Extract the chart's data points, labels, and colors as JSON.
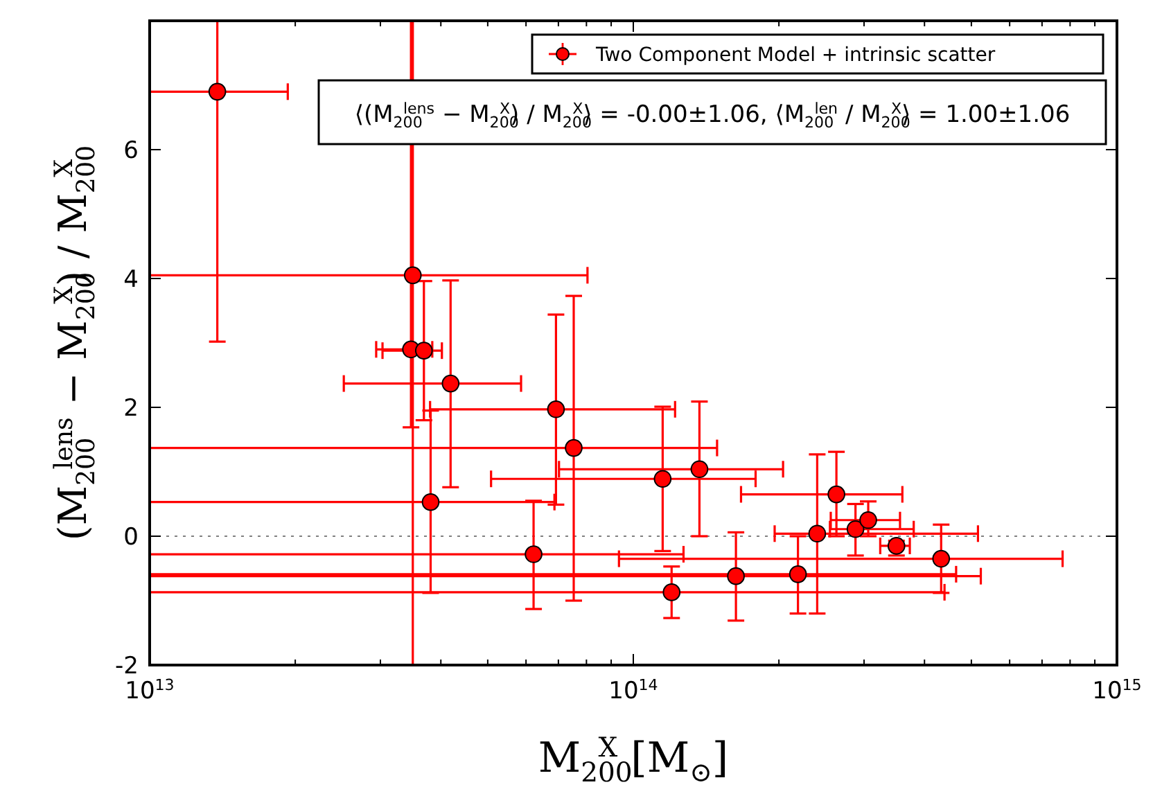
{
  "chart_data": {
    "type": "scatter",
    "xlabel": "M$_{200}$$^{X}$ [M$_{⊙}$]",
    "ylabel": "(M$_{200}$$^{lens}$ − M$_{200}$$^{X}$) / M$_{200}$$^{X}$",
    "log": "x",
    "xlim": [
      10000000000000.0,
      1000000000000000.0
    ],
    "ylim": [
      -2,
      8
    ],
    "xticks": [
      {
        "value": 10000000000000.0,
        "label": "10$^{13}$"
      },
      {
        "value": 20000000000000.0,
        "label": null
      },
      {
        "value": 30000000000000.0,
        "label": null
      },
      {
        "value": 40000000000000.0,
        "label": null
      },
      {
        "value": 50000000000000.0,
        "label": null
      },
      {
        "value": 60000000000000.0,
        "label": null
      },
      {
        "value": 70000000000000.0,
        "label": null
      },
      {
        "value": 80000000000000.0,
        "label": null
      },
      {
        "value": 90000000000000.0,
        "label": null
      },
      {
        "value": 100000000000000.0,
        "label": "10$^{14}$"
      },
      {
        "value": 200000000000000.0,
        "label": null
      },
      {
        "value": 300000000000000.0,
        "label": null
      },
      {
        "value": 400000000000000.0,
        "label": null
      },
      {
        "value": 500000000000000.0,
        "label": null
      },
      {
        "value": 600000000000000.0,
        "label": null
      },
      {
        "value": 700000000000000.0,
        "label": null
      },
      {
        "value": 800000000000000.0,
        "label": null
      },
      {
        "value": 900000000000000.0,
        "label": null
      },
      {
        "value": 1000000000000000.0,
        "label": "10$^{15}$"
      }
    ],
    "yticks": [
      -2,
      0,
      2,
      4,
      6
    ],
    "grid": false,
    "legend": "top right",
    "marker": "circle",
    "ref_lines": [
      {
        "axis": "y",
        "value": 0,
        "color": "#808080",
        "line_style": "dotted"
      }
    ],
    "annotations": [
      "⟨(M$_{200}$$^{lens}$ − M$_{200}$$^{X}$) / M$_{200}$$^{X}$⟩ = -0.00±1.06, ⟨M$_{200}$$^{len}$ / M$_{200}$$^{X}$⟩ = 1.00±1.06"
    ],
    "series": [
      {
        "name": "Two Component Model + intrinsic scatter",
        "color": "#ff0000",
        "x": [
          13800000000000.0,
          35000000000000.0,
          34700000000000.0,
          36900000000000.0,
          41900000000000.0,
          69200000000000.0,
          75300000000000.0,
          38100000000000.0,
          62200000000000.0,
          115000000000000.0,
          137000000000000.0,
          263000000000000.0,
          240000000000000.0,
          288000000000000.0,
          306000000000000.0,
          350000000000000.0,
          433000000000000.0,
          163000000000000.0,
          219000000000000.0,
          120000000000000.0
        ],
        "values": [
          6.9,
          4.05,
          2.9,
          2.88,
          2.37,
          1.97,
          1.37,
          0.53,
          -0.28,
          0.89,
          1.04,
          0.65,
          0.04,
          0.11,
          0.25,
          -0.15,
          -0.35,
          -0.62,
          -0.59,
          -0.87
        ],
        "errors": [
          [
            3.02,
            8
          ],
          [
            -2,
            8
          ],
          [
            1.69,
            8
          ],
          [
            1.8,
            3.96
          ],
          [
            0.76,
            3.97
          ],
          [
            0.49,
            3.44
          ],
          [
            -1.0,
            3.73
          ],
          [
            -0.88,
            1.95
          ],
          [
            -1.13,
            0.55
          ],
          [
            -0.23,
            2.01
          ],
          [
            0,
            2.09
          ],
          [
            0,
            1.31
          ],
          [
            -1.2,
            1.27
          ],
          [
            -0.3,
            0.5
          ],
          [
            0,
            0.54
          ],
          [
            -0.3,
            -0.07
          ],
          [
            -0.88,
            0.18
          ],
          [
            -1.31,
            0.06
          ],
          [
            -1.2,
            0
          ],
          [
            -1.27,
            -0.47
          ]
        ],
        "xerrors": [
          [
            10000000000000.0,
            19300000000000.0
          ],
          [
            10000000000000.0,
            80400000000000.0
          ],
          [
            29400000000000.0,
            38400000000000.0
          ],
          [
            30300000000000.0,
            40200000000000.0
          ],
          [
            25200000000000.0,
            58600000000000.0
          ],
          [
            38000000000000.0,
            122000000000000.0
          ],
          [
            10000000000000.0,
            149000000000000.0
          ],
          [
            10000000000000.0,
            68700000000000.0
          ],
          [
            10000000000000.0,
            127000000000000.0
          ],
          [
            50800000000000.0,
            179000000000000.0
          ],
          [
            70200000000000.0,
            204000000000000.0
          ],
          [
            167000000000000.0,
            360000000000000.0
          ],
          [
            196000000000000.0,
            516000000000000.0
          ],
          [
            255000000000000.0,
            380000000000000.0
          ],
          [
            256000000000000.0,
            356000000000000.0
          ],
          [
            324000000000000.0,
            373000000000000.0
          ],
          [
            93400000000000.0,
            772000000000000.0
          ],
          [
            10000000000000.0,
            523000000000000.0
          ],
          [
            10000000000000.0,
            465000000000000.0
          ],
          [
            10000000000000.0,
            440000000000000.0
          ]
        ]
      }
    ]
  }
}
